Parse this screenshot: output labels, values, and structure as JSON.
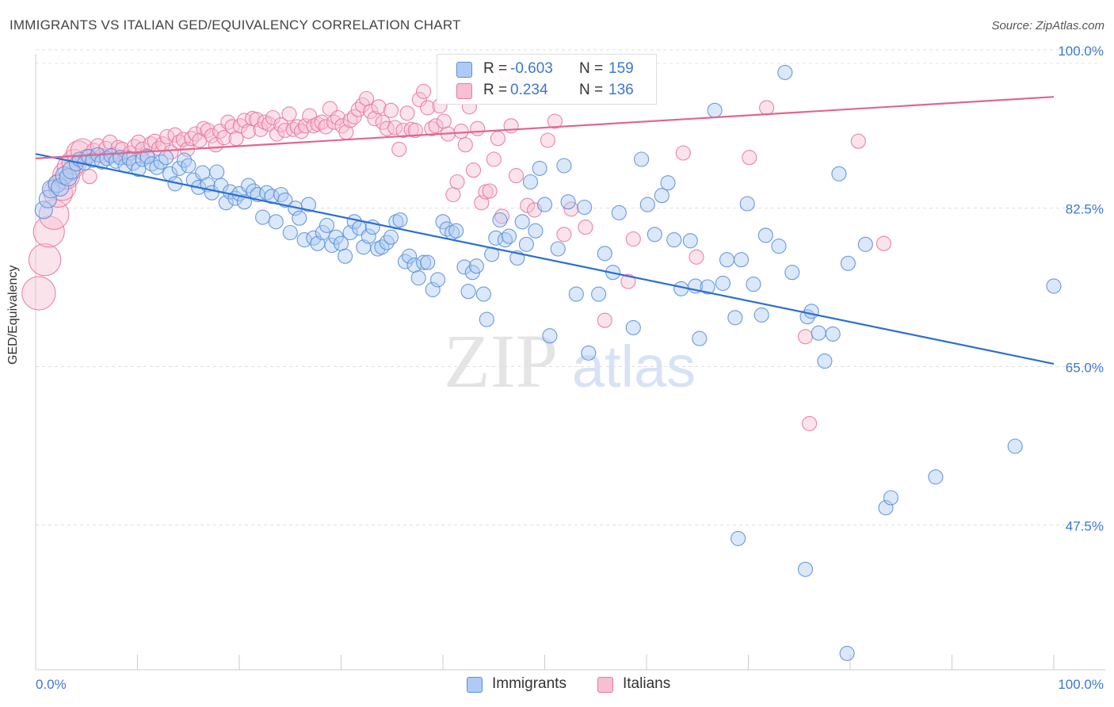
{
  "title": "IMMIGRANTS VS ITALIAN GED/EQUIVALENCY CORRELATION CHART",
  "source": "Source: ZipAtlas.com",
  "watermark": {
    "zip": "ZIP",
    "atlas": "atlas"
  },
  "legend": {
    "rows": [
      {
        "r_label": "R =",
        "r_value": "-0.603",
        "n_label": "N =",
        "n_value": "159"
      },
      {
        "r_label": "R =",
        "r_value": "0.234",
        "n_label": "N =",
        "n_value": "136"
      }
    ]
  },
  "chart_data": {
    "type": "scatter",
    "title": "IMMIGRANTS VS ITALIAN GED/EQUIVALENCY CORRELATION CHART",
    "xlabel": "",
    "ylabel": "GED/Equivalency",
    "xlim": [
      0,
      100
    ],
    "ylim": [
      31.5,
      102
    ],
    "x_tick_labels": [
      "0.0%",
      "100.0%"
    ],
    "y_ticks": [
      47.5,
      65.0,
      82.5,
      100.0
    ],
    "y_tick_labels": [
      "47.5%",
      "65.0%",
      "82.5%",
      "100.0%"
    ],
    "grid": true,
    "colors": {
      "immigrants": "#5b8fd9",
      "immigrants_fill": "#aecbf5",
      "italians": "#e8779f",
      "italians_fill": "#f7c0d2",
      "trend_blue": "#2b6fd0",
      "trend_pink": "#e0668f",
      "tick_label": "#3b78d0"
    },
    "series": [
      {
        "name": "Immigrants",
        "trend": {
          "x": [
            0,
            100
          ],
          "y": [
            88.5,
            65.3
          ]
        },
        "points": [
          [
            0.8,
            82.3
          ],
          [
            1.2,
            83.5
          ],
          [
            1.5,
            84.6
          ],
          [
            2.1,
            85.2
          ],
          [
            2.4,
            84.8
          ],
          [
            2.8,
            86.1
          ],
          [
            3.2,
            85.9
          ],
          [
            3.5,
            86.7
          ],
          [
            4.0,
            87.4
          ],
          [
            4.3,
            87.9
          ],
          [
            4.8,
            87.5
          ],
          [
            5.2,
            88.2
          ],
          [
            5.6,
            87.8
          ],
          [
            6.1,
            88.4
          ],
          [
            6.5,
            87.6
          ],
          [
            7.0,
            88.0
          ],
          [
            7.4,
            88.3
          ],
          [
            7.9,
            87.7
          ],
          [
            8.3,
            88.1
          ],
          [
            8.8,
            87.2
          ],
          [
            9.2,
            88.0
          ],
          [
            9.6,
            87.5
          ],
          [
            10.1,
            86.8
          ],
          [
            10.5,
            87.9
          ],
          [
            11.0,
            88.2
          ],
          [
            11.4,
            87.4
          ],
          [
            11.9,
            87.0
          ],
          [
            12.3,
            87.6
          ],
          [
            12.8,
            88.1
          ],
          [
            13.2,
            86.3
          ],
          [
            13.7,
            85.2
          ],
          [
            14.1,
            86.9
          ],
          [
            14.6,
            87.8
          ],
          [
            15.0,
            87.2
          ],
          [
            15.5,
            85.6
          ],
          [
            16.0,
            84.8
          ],
          [
            16.4,
            86.4
          ],
          [
            16.9,
            85.1
          ],
          [
            17.3,
            84.2
          ],
          [
            17.8,
            86.5
          ],
          [
            18.2,
            85.0
          ],
          [
            18.7,
            83.1
          ],
          [
            19.1,
            84.3
          ],
          [
            19.6,
            83.6
          ],
          [
            20.0,
            84.1
          ],
          [
            20.5,
            83.2
          ],
          [
            20.9,
            85.0
          ],
          [
            21.4,
            84.4
          ],
          [
            21.8,
            84.0
          ],
          [
            22.3,
            81.5
          ],
          [
            22.7,
            84.2
          ],
          [
            23.2,
            83.8
          ],
          [
            23.6,
            81.0
          ],
          [
            24.1,
            84.0
          ],
          [
            24.5,
            83.4
          ],
          [
            25.0,
            79.8
          ],
          [
            25.5,
            82.5
          ],
          [
            25.9,
            81.4
          ],
          [
            26.4,
            79.0
          ],
          [
            26.8,
            82.9
          ],
          [
            27.3,
            79.2
          ],
          [
            27.7,
            78.6
          ],
          [
            28.2,
            79.8
          ],
          [
            28.6,
            80.6
          ],
          [
            29.1,
            78.4
          ],
          [
            29.5,
            79.3
          ],
          [
            30.0,
            78.6
          ],
          [
            30.4,
            77.2
          ],
          [
            30.9,
            79.8
          ],
          [
            31.3,
            81.0
          ],
          [
            31.8,
            80.3
          ],
          [
            32.2,
            78.2
          ],
          [
            32.7,
            79.4
          ],
          [
            33.1,
            80.4
          ],
          [
            33.6,
            78.0
          ],
          [
            34.0,
            78.2
          ],
          [
            34.5,
            78.7
          ],
          [
            34.9,
            79.3
          ],
          [
            35.4,
            81.0
          ],
          [
            35.8,
            81.2
          ],
          [
            36.3,
            76.6
          ],
          [
            36.7,
            77.2
          ],
          [
            37.2,
            76.2
          ],
          [
            37.6,
            74.8
          ],
          [
            38.1,
            76.5
          ],
          [
            38.5,
            76.5
          ],
          [
            39.0,
            73.5
          ],
          [
            39.5,
            74.6
          ],
          [
            40.0,
            81.0
          ],
          [
            40.4,
            80.2
          ],
          [
            40.9,
            79.8
          ],
          [
            41.3,
            80.0
          ],
          [
            42.1,
            76.0
          ],
          [
            42.5,
            73.3
          ],
          [
            42.9,
            75.4
          ],
          [
            43.3,
            76.1
          ],
          [
            44.0,
            73.0
          ],
          [
            44.3,
            70.2
          ],
          [
            44.8,
            77.4
          ],
          [
            45.2,
            79.2
          ],
          [
            45.6,
            81.2
          ],
          [
            46.1,
            79.0
          ],
          [
            46.5,
            79.4
          ],
          [
            47.3,
            77.0
          ],
          [
            47.8,
            81.0
          ],
          [
            48.2,
            78.5
          ],
          [
            48.6,
            85.4
          ],
          [
            49.1,
            80.0
          ],
          [
            49.5,
            86.9
          ],
          [
            50.0,
            82.9
          ],
          [
            50.5,
            68.4
          ],
          [
            51.3,
            78.0
          ],
          [
            51.9,
            87.2
          ],
          [
            52.3,
            83.2
          ],
          [
            53.1,
            73.0
          ],
          [
            53.9,
            82.6
          ],
          [
            54.3,
            66.5
          ],
          [
            55.3,
            73.0
          ],
          [
            55.9,
            77.5
          ],
          [
            56.7,
            75.4
          ],
          [
            57.3,
            82.0
          ],
          [
            58.7,
            69.3
          ],
          [
            59.5,
            87.9
          ],
          [
            60.1,
            82.9
          ],
          [
            60.8,
            79.6
          ],
          [
            61.5,
            83.9
          ],
          [
            62.1,
            85.3
          ],
          [
            62.7,
            79.0
          ],
          [
            63.4,
            73.6
          ],
          [
            64.3,
            78.9
          ],
          [
            64.8,
            73.9
          ],
          [
            65.2,
            68.1
          ],
          [
            66.0,
            73.8
          ],
          [
            66.7,
            93.3
          ],
          [
            67.5,
            74.2
          ],
          [
            67.9,
            76.8
          ],
          [
            68.7,
            70.4
          ],
          [
            69.3,
            76.8
          ],
          [
            69.9,
            83.0
          ],
          [
            70.5,
            74.1
          ],
          [
            71.3,
            70.7
          ],
          [
            71.7,
            79.5
          ],
          [
            73.0,
            78.3
          ],
          [
            73.6,
            97.5
          ],
          [
            74.3,
            75.4
          ],
          [
            75.8,
            70.5
          ],
          [
            76.2,
            71.1
          ],
          [
            76.9,
            68.7
          ],
          [
            77.5,
            65.6
          ],
          [
            78.3,
            68.6
          ],
          [
            78.9,
            86.3
          ],
          [
            79.8,
            76.4
          ],
          [
            81.5,
            78.5
          ],
          [
            83.5,
            49.4
          ],
          [
            84.0,
            50.5
          ],
          [
            88.4,
            52.8
          ],
          [
            96.2,
            56.2
          ],
          [
            100.0,
            73.9
          ],
          [
            75.6,
            42.6
          ],
          [
            79.7,
            33.3
          ],
          [
            69.0,
            46.0
          ]
        ]
      },
      {
        "name": "Italians",
        "trend": {
          "x": [
            0,
            100
          ],
          "y": [
            88.0,
            94.8
          ]
        },
        "points": [
          [
            0.3,
            73.1
          ],
          [
            0.9,
            76.8
          ],
          [
            1.3,
            79.9
          ],
          [
            1.8,
            81.8
          ],
          [
            2.2,
            84.2
          ],
          [
            2.6,
            84.9
          ],
          [
            3.0,
            86.1
          ],
          [
            3.4,
            87.0
          ],
          [
            3.8,
            87.6
          ],
          [
            4.2,
            88.6
          ],
          [
            4.6,
            88.9
          ],
          [
            5.0,
            88.2
          ],
          [
            5.3,
            86.0
          ],
          [
            5.7,
            88.9
          ],
          [
            6.1,
            89.4
          ],
          [
            6.5,
            88.3
          ],
          [
            6.9,
            89.1
          ],
          [
            7.3,
            89.8
          ],
          [
            7.7,
            88.4
          ],
          [
            8.1,
            89.2
          ],
          [
            8.5,
            89.0
          ],
          [
            8.9,
            88.1
          ],
          [
            9.3,
            88.6
          ],
          [
            9.7,
            89.3
          ],
          [
            10.1,
            89.8
          ],
          [
            10.5,
            89.0
          ],
          [
            10.9,
            88.3
          ],
          [
            11.3,
            89.6
          ],
          [
            11.7,
            89.9
          ],
          [
            12.1,
            89.1
          ],
          [
            12.5,
            89.6
          ],
          [
            12.9,
            90.4
          ],
          [
            13.3,
            88.7
          ],
          [
            13.7,
            90.6
          ],
          [
            14.1,
            89.8
          ],
          [
            14.5,
            90.1
          ],
          [
            14.9,
            89.0
          ],
          [
            15.3,
            90.2
          ],
          [
            15.7,
            90.7
          ],
          [
            16.1,
            90.0
          ],
          [
            16.5,
            91.3
          ],
          [
            16.9,
            91.1
          ],
          [
            17.3,
            90.5
          ],
          [
            17.7,
            89.5
          ],
          [
            18.1,
            91.0
          ],
          [
            18.5,
            90.3
          ],
          [
            18.9,
            92.0
          ],
          [
            19.3,
            91.5
          ],
          [
            19.7,
            90.2
          ],
          [
            20.1,
            91.6
          ],
          [
            20.5,
            92.2
          ],
          [
            20.9,
            91.0
          ],
          [
            21.3,
            92.4
          ],
          [
            21.7,
            92.3
          ],
          [
            22.1,
            91.2
          ],
          [
            22.5,
            92.0
          ],
          [
            22.9,
            91.8
          ],
          [
            23.3,
            92.5
          ],
          [
            23.7,
            90.7
          ],
          [
            24.1,
            91.7
          ],
          [
            24.5,
            91.1
          ],
          [
            24.9,
            92.9
          ],
          [
            25.3,
            91.2
          ],
          [
            25.7,
            91.5
          ],
          [
            26.1,
            91.0
          ],
          [
            26.5,
            91.6
          ],
          [
            26.9,
            92.7
          ],
          [
            27.3,
            91.6
          ],
          [
            27.7,
            91.8
          ],
          [
            28.1,
            92.0
          ],
          [
            28.5,
            91.5
          ],
          [
            28.9,
            93.5
          ],
          [
            29.3,
            92.0
          ],
          [
            29.7,
            92.5
          ],
          [
            30.1,
            91.6
          ],
          [
            30.5,
            90.9
          ],
          [
            30.9,
            92.2
          ],
          [
            31.3,
            92.6
          ],
          [
            31.7,
            93.4
          ],
          [
            32.1,
            93.9
          ],
          [
            32.5,
            94.6
          ],
          [
            32.9,
            93.2
          ],
          [
            33.3,
            92.4
          ],
          [
            33.7,
            93.7
          ],
          [
            34.1,
            92.0
          ],
          [
            34.5,
            91.3
          ],
          [
            34.9,
            93.3
          ],
          [
            35.3,
            91.4
          ],
          [
            35.7,
            89.0
          ],
          [
            36.1,
            91.1
          ],
          [
            36.5,
            93.0
          ],
          [
            36.9,
            91.2
          ],
          [
            37.3,
            91.1
          ],
          [
            37.7,
            94.5
          ],
          [
            38.1,
            95.4
          ],
          [
            38.5,
            93.6
          ],
          [
            38.9,
            91.3
          ],
          [
            39.3,
            91.6
          ],
          [
            39.7,
            93.8
          ],
          [
            40.1,
            92.1
          ],
          [
            40.5,
            90.7
          ],
          [
            41.0,
            84.0
          ],
          [
            41.4,
            85.4
          ],
          [
            41.8,
            91.0
          ],
          [
            42.2,
            89.5
          ],
          [
            42.6,
            93.7
          ],
          [
            43.0,
            86.7
          ],
          [
            43.4,
            91.3
          ],
          [
            43.8,
            83.1
          ],
          [
            44.2,
            84.3
          ],
          [
            44.6,
            84.4
          ],
          [
            45.0,
            87.9
          ],
          [
            45.4,
            90.2
          ],
          [
            45.8,
            81.6
          ],
          [
            46.2,
            97.4
          ],
          [
            46.7,
            91.6
          ],
          [
            47.2,
            86.1
          ],
          [
            47.7,
            96.5
          ],
          [
            48.3,
            82.8
          ],
          [
            49.0,
            82.3
          ],
          [
            49.6,
            95.4
          ],
          [
            50.3,
            90.0
          ],
          [
            51.0,
            92.1
          ],
          [
            51.9,
            79.6
          ],
          [
            52.6,
            82.4
          ],
          [
            54.0,
            80.4
          ],
          [
            55.9,
            70.1
          ],
          [
            58.2,
            74.4
          ],
          [
            58.7,
            79.1
          ],
          [
            63.6,
            88.6
          ],
          [
            64.9,
            77.1
          ],
          [
            70.1,
            88.1
          ],
          [
            71.8,
            93.6
          ],
          [
            75.6,
            68.3
          ],
          [
            76.0,
            58.7
          ],
          [
            80.8,
            89.9
          ],
          [
            83.3,
            78.6
          ]
        ]
      }
    ]
  },
  "bottom_legend": {
    "immigrants": "Immigrants",
    "italians": "Italians"
  }
}
